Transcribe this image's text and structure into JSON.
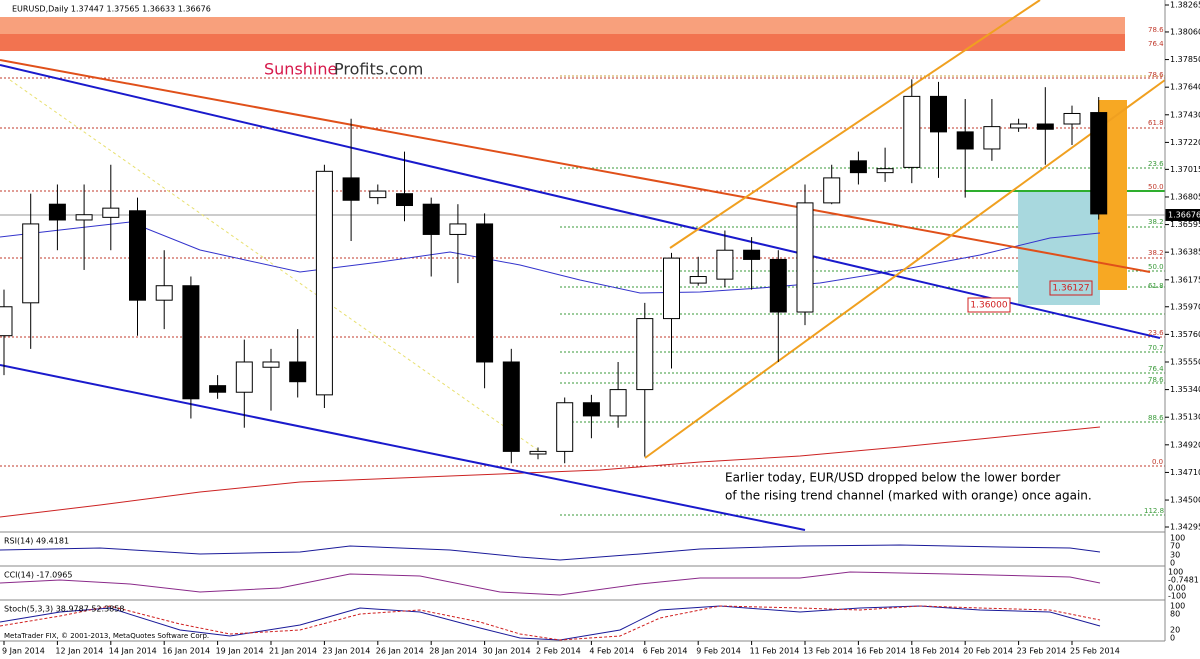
{
  "header": {
    "symbol_line": "EURUSD,Daily  1.37447 1.37565 1.36633 1.36676"
  },
  "logo": {
    "part1": "Sunshine",
    "part2": "Profits.com"
  },
  "annotation": {
    "line1": "Earlier today, EUR/USD dropped below the lower border",
    "line2": "of the rising trend channel (marked with orange) once again."
  },
  "price_tags": {
    "level_a": "1.36000",
    "level_b": "1.36127",
    "current": "1.36676"
  },
  "fib_labels": [
    "78.6",
    "76.4",
    "78.6",
    "61.8",
    "23.6",
    "50.0",
    "38.2",
    "38.2",
    "50.0",
    "61.8",
    "23.6",
    "70.7",
    "76.4",
    "78.6",
    "88.6",
    "0.0",
    "112.8"
  ],
  "indicators": [
    {
      "label": "RSI(14) 49.4181",
      "scale": [
        "100",
        "70",
        "30",
        "0"
      ]
    },
    {
      "label": "CCI(14) -17.0965",
      "scale": [
        "100",
        "-0.7481",
        "0.00",
        "-100"
      ]
    },
    {
      "label": "Stoch(5,3,3) 38.9787 52.3858",
      "scale": [
        "100",
        "80",
        "20",
        "0"
      ]
    }
  ],
  "copyright": "MetaTrader FIX, © 2001-2013, MetaQuotes Software Corp.",
  "chart_data": {
    "type": "candlestick",
    "categories": [
      "9 Jan 2014",
      null,
      "12 Jan 2014",
      null,
      "14 Jan 2014",
      null,
      "16 Jan 2014",
      null,
      "19 Jan 2014",
      null,
      "21 Jan 2014",
      null,
      "23 Jan 2014",
      null,
      "26 Jan 2014",
      null,
      "28 Jan 2014",
      null,
      "30 Jan 2014",
      null,
      "2 Feb 2014",
      null,
      "4 Feb 2014",
      null,
      "6 Feb 2014",
      null,
      "9 Feb 2014",
      null,
      "11 Feb 2014",
      null,
      "13 Feb 2014",
      null,
      "16 Feb 2014",
      null,
      "18 Feb 2014",
      null,
      "20 Feb 2014",
      null,
      "23 Feb 2014",
      null,
      "25 Feb 2014",
      null
    ],
    "open": [
      1.3575,
      1.36,
      1.3675,
      1.3663,
      1.3665,
      1.367,
      1.3602,
      1.3613,
      1.3537,
      1.3532,
      1.3551,
      1.3555,
      1.353,
      1.3695,
      1.368,
      1.3683,
      1.3675,
      1.3652,
      1.366,
      1.3555,
      1.3485,
      1.3487,
      1.3524,
      1.3514,
      1.3534,
      1.3588,
      1.3615,
      1.3618,
      1.364,
      1.3633,
      1.3593,
      1.3676,
      1.3708,
      1.3699,
      1.3703,
      1.3757,
      1.373,
      1.3717,
      1.3733,
      1.3736,
      1.3736,
      1.37447
    ],
    "high": [
      1.361,
      1.3683,
      1.369,
      1.369,
      1.3705,
      1.368,
      1.364,
      1.362,
      1.3545,
      1.3572,
      1.3565,
      1.358,
      1.3705,
      1.374,
      1.369,
      1.3715,
      1.368,
      1.3675,
      1.3668,
      1.3565,
      1.349,
      1.3528,
      1.353,
      1.3555,
      1.36,
      1.3638,
      1.3635,
      1.3655,
      1.365,
      1.364,
      1.369,
      1.3705,
      1.3715,
      1.3718,
      1.377,
      1.3768,
      1.3755,
      1.3755,
      1.374,
      1.3764,
      1.375,
      1.37565
    ],
    "low": [
      1.3545,
      1.3565,
      1.364,
      1.3625,
      1.364,
      1.3575,
      1.358,
      1.3512,
      1.3527,
      1.3505,
      1.3518,
      1.3528,
      1.352,
      1.3647,
      1.3675,
      1.3662,
      1.362,
      1.3615,
      1.3535,
      1.3478,
      1.3481,
      1.3478,
      1.3497,
      1.3505,
      1.3483,
      1.355,
      1.3613,
      1.3612,
      1.361,
      1.3555,
      1.3583,
      1.3675,
      1.369,
      1.3692,
      1.3691,
      1.3695,
      1.368,
      1.3708,
      1.373,
      1.3705,
      1.372,
      1.36633
    ],
    "close": [
      1.3597,
      1.366,
      1.3663,
      1.3667,
      1.3672,
      1.3602,
      1.3613,
      1.3527,
      1.3532,
      1.3555,
      1.3555,
      1.354,
      1.37,
      1.3678,
      1.3685,
      1.3674,
      1.3652,
      1.366,
      1.3555,
      1.3487,
      1.3487,
      1.3524,
      1.3514,
      1.3534,
      1.3588,
      1.3634,
      1.362,
      1.364,
      1.3633,
      1.3593,
      1.3676,
      1.3695,
      1.3699,
      1.3702,
      1.3757,
      1.373,
      1.3717,
      1.3734,
      1.3736,
      1.3732,
      1.3744,
      1.36676
    ],
    "ylim": [
      1.34295,
      1.38265
    ],
    "yticks": [
      1.38265,
      {
        "value": 1.3806,
        "label": "1.38060"
      },
      {
        "value": 1.3785,
        "label": "1.37850"
      },
      {
        "value": 1.3764,
        "label": "1.37640"
      },
      {
        "value": 1.3743,
        "label": "1.37430"
      },
      {
        "value": 1.3722,
        "label": "1.37220"
      },
      1.37015,
      1.36805,
      1.36595,
      1.36385,
      1.36175,
      {
        "value": 1.3597,
        "label": "1.35970"
      },
      {
        "value": 1.3576,
        "label": "1.35760"
      },
      {
        "value": 1.3555,
        "label": "1.35550"
      },
      {
        "value": 1.3534,
        "label": "1.35340"
      },
      {
        "value": 1.3513,
        "label": "1.35130"
      },
      {
        "value": 1.3492,
        "label": "1.34920"
      },
      {
        "value": 1.3471,
        "label": "1.34710"
      },
      {
        "value": 1.345,
        "label": "1.34500"
      },
      1.34295
    ],
    "up_color": "#ffffff",
    "down_color": "#000000"
  }
}
